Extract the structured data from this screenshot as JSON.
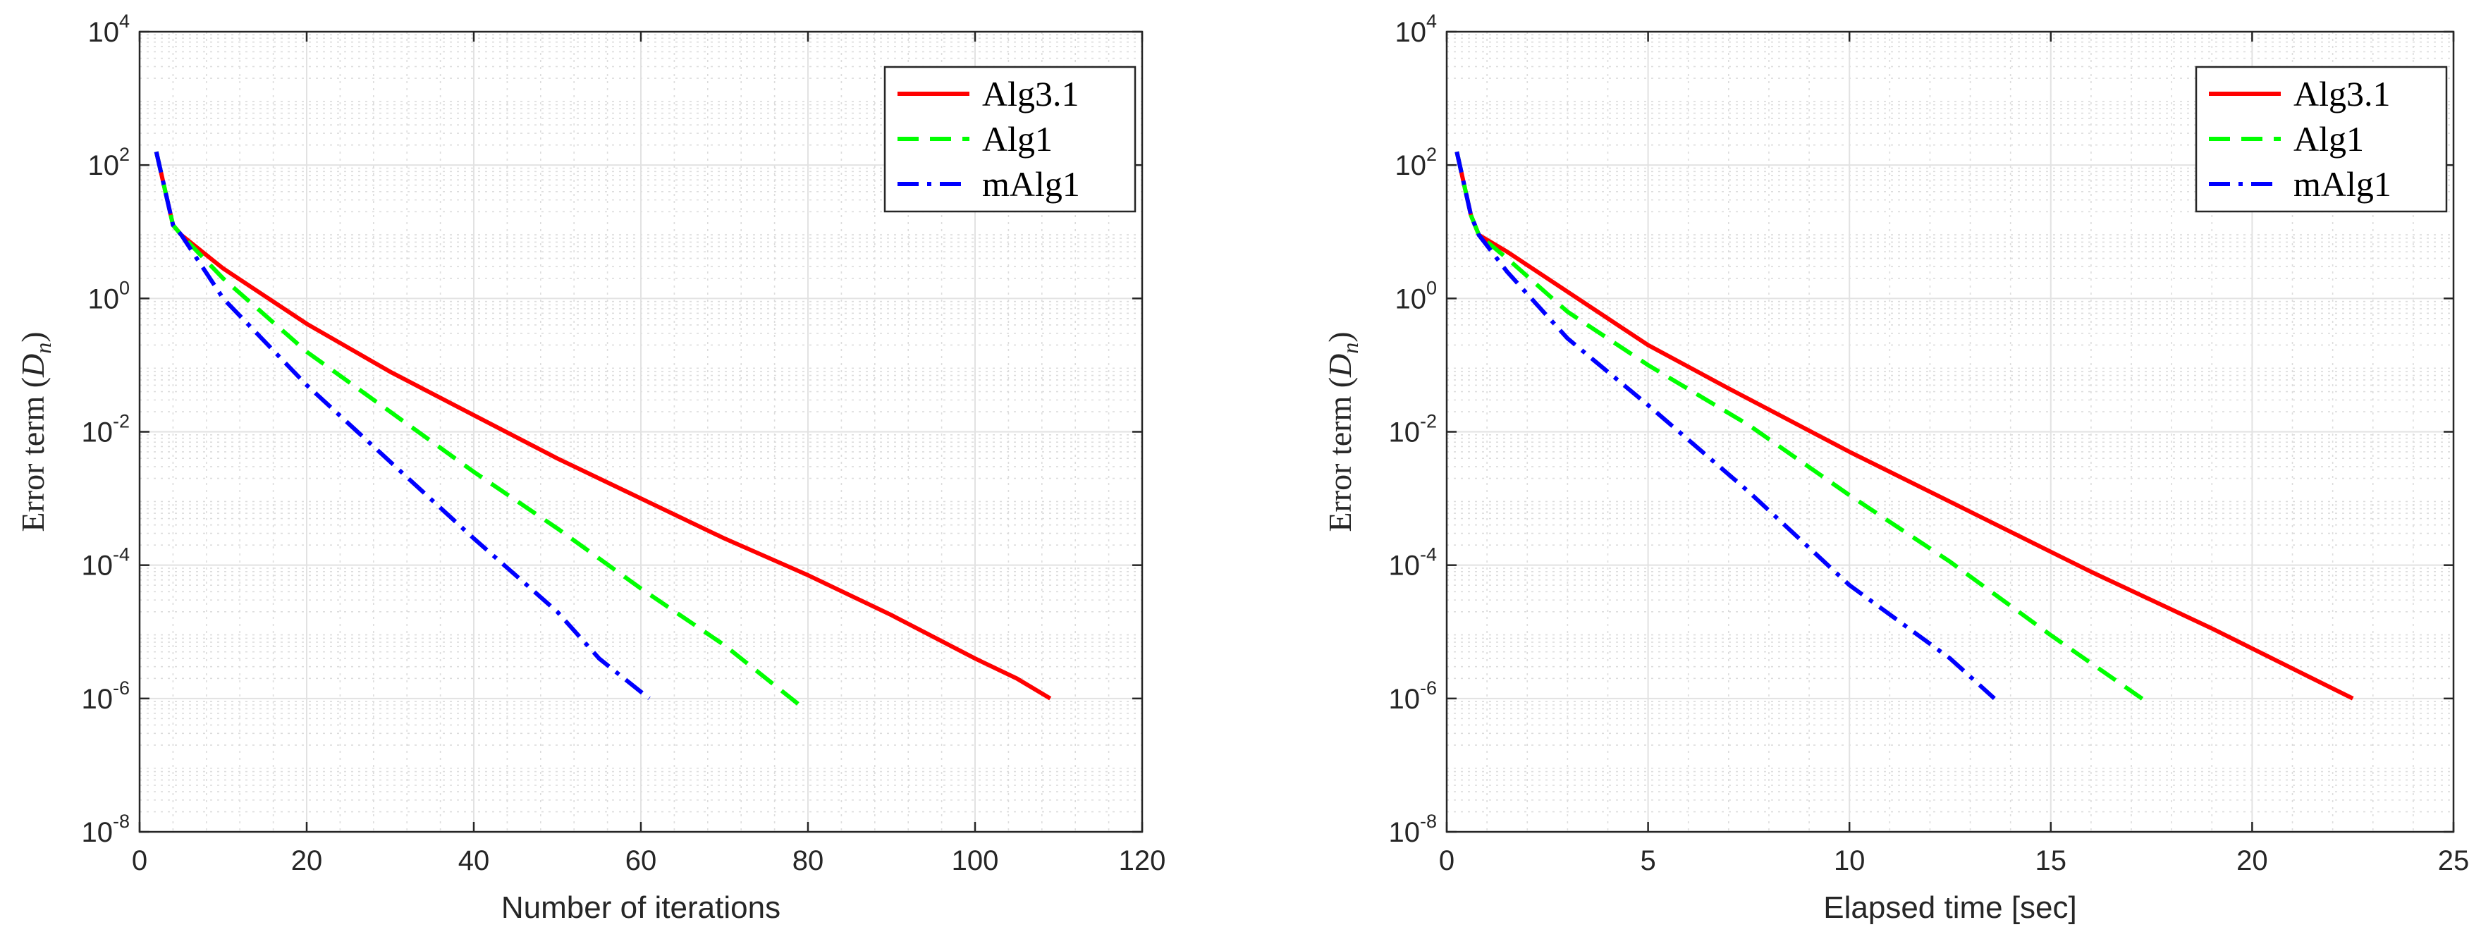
{
  "chart_data": [
    {
      "type": "line",
      "title": "",
      "xlabel": "Number of iterations",
      "ylabel_main": "Error term (",
      "ylabel_var": "D",
      "ylabel_sub": "n",
      "ylabel_close": ")",
      "xlim": [
        0,
        120
      ],
      "ylim_log10": [
        -8,
        4
      ],
      "yscale": "log",
      "grid": true,
      "legend_position": "top-right",
      "xticks": [
        0,
        20,
        40,
        60,
        80,
        100,
        120
      ],
      "xtick_labels": [
        "0",
        "20",
        "40",
        "60",
        "80",
        "100",
        "120"
      ],
      "ytick_base": "10",
      "ytick_exponents": [
        "4",
        "2",
        "0",
        "-2",
        "-4",
        "-6",
        "-8"
      ],
      "series": [
        {
          "name": "Alg3.1",
          "color": "#ff0000",
          "style": "solid",
          "x": [
            2,
            4,
            5,
            10,
            20,
            30,
            40,
            50,
            60,
            70,
            80,
            90,
            100,
            105,
            109
          ],
          "log10_y": [
            2.2,
            1.1,
            0.95,
            0.45,
            -0.38,
            -1.1,
            -1.75,
            -2.4,
            -3.0,
            -3.6,
            -4.15,
            -4.75,
            -5.4,
            -5.7,
            -6.0
          ]
        },
        {
          "name": "Alg1",
          "color": "#00ff00",
          "style": "dashed",
          "x": [
            2,
            4,
            5,
            10,
            20,
            30,
            40,
            50,
            60,
            70,
            75,
            79
          ],
          "log10_y": [
            2.2,
            1.1,
            0.95,
            0.3,
            -0.8,
            -1.7,
            -2.6,
            -3.45,
            -4.35,
            -5.2,
            -5.7,
            -6.1
          ]
        },
        {
          "name": "mAlg1",
          "color": "#0000ff",
          "style": "dashdot",
          "x": [
            2,
            4,
            5,
            10,
            20,
            30,
            40,
            50,
            55,
            61
          ],
          "log10_y": [
            2.2,
            1.1,
            0.95,
            0.0,
            -1.3,
            -2.45,
            -3.6,
            -4.7,
            -5.4,
            -6.0
          ]
        }
      ]
    },
    {
      "type": "line",
      "title": "",
      "xlabel": "Elapsed time [sec]",
      "ylabel_main": "Error term (",
      "ylabel_var": "D",
      "ylabel_sub": "n",
      "ylabel_close": ")",
      "xlim": [
        0,
        25
      ],
      "ylim_log10": [
        -8,
        4
      ],
      "yscale": "log",
      "grid": true,
      "legend_position": "top-right",
      "xticks": [
        0,
        5,
        10,
        15,
        20,
        25
      ],
      "xtick_labels": [
        "0",
        "5",
        "10",
        "15",
        "20",
        "25"
      ],
      "ytick_base": "10",
      "ytick_exponents": [
        "4",
        "2",
        "0",
        "-2",
        "-4",
        "-6",
        "-8"
      ],
      "series": [
        {
          "name": "Alg3.1",
          "color": "#ff0000",
          "style": "solid",
          "x": [
            0.25,
            0.6,
            0.8,
            1.5,
            3,
            5,
            7,
            10,
            13,
            16,
            19,
            21,
            22.5
          ],
          "log10_y": [
            2.2,
            1.25,
            0.95,
            0.7,
            0.1,
            -0.7,
            -1.35,
            -2.3,
            -3.2,
            -4.1,
            -4.95,
            -5.55,
            -6.0
          ]
        },
        {
          "name": "Alg1",
          "color": "#00ff00",
          "style": "dashed",
          "x": [
            0.25,
            0.6,
            0.8,
            1.5,
            3,
            5,
            7.5,
            10,
            12.5,
            15,
            17.5
          ],
          "log10_y": [
            2.2,
            1.25,
            0.95,
            0.6,
            -0.2,
            -1.0,
            -1.9,
            -2.95,
            -3.95,
            -5.05,
            -6.1
          ]
        },
        {
          "name": "mAlg1",
          "color": "#0000ff",
          "style": "dashdot",
          "x": [
            0.25,
            0.6,
            0.8,
            1.5,
            3,
            5,
            7.5,
            10,
            12.5,
            13.6
          ],
          "log10_y": [
            2.2,
            1.25,
            0.95,
            0.4,
            -0.6,
            -1.6,
            -2.9,
            -4.3,
            -5.4,
            -6.0
          ]
        }
      ]
    }
  ]
}
